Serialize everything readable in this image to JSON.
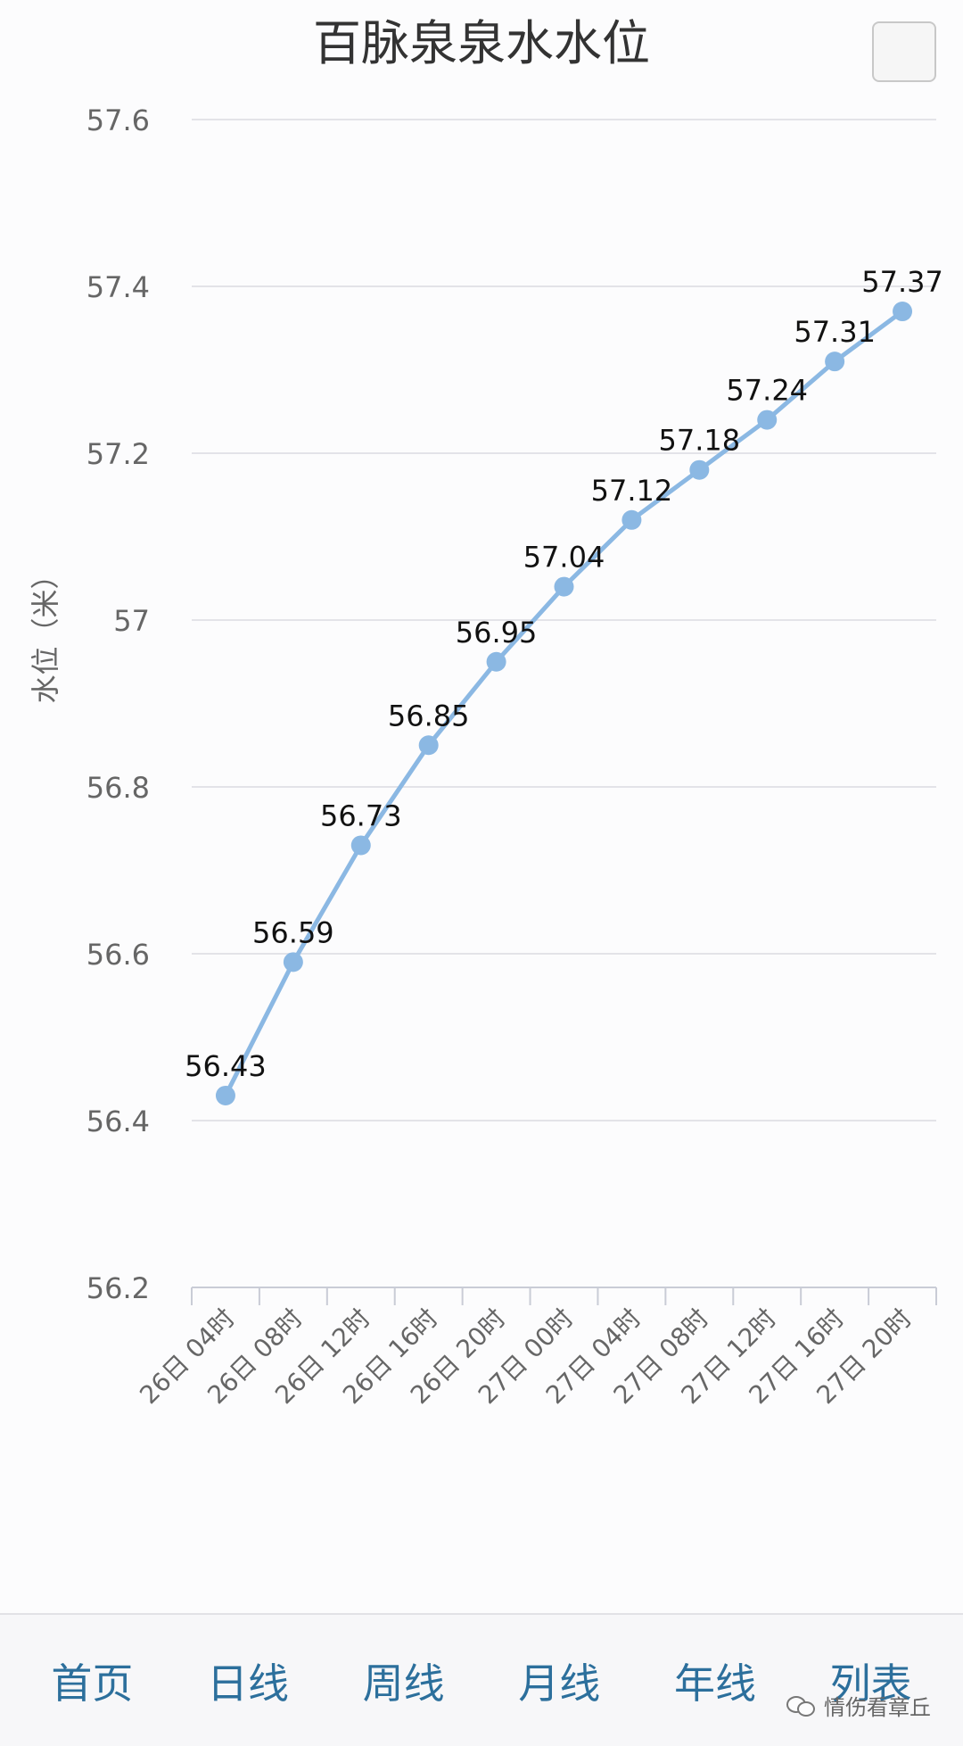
{
  "page": {
    "title": "百脉泉泉水水位"
  },
  "chart_data": {
    "type": "line",
    "title": "百脉泉泉水水位",
    "ylabel": "水位（米）",
    "xlabel": "",
    "categories": [
      "26日 04时",
      "26日 08时",
      "26日 12时",
      "26日 16时",
      "26日 20时",
      "27日 00时",
      "27日 04时",
      "27日 08时",
      "27日 12时",
      "27日 16时",
      "27日 20时"
    ],
    "values": [
      56.43,
      56.59,
      56.73,
      56.85,
      56.95,
      57.04,
      57.12,
      57.18,
      57.24,
      57.31,
      57.37
    ],
    "data_labels": [
      "56.43",
      "56.59",
      "56.73",
      "56.85",
      "56.95",
      "57.04",
      "57.12",
      "57.18",
      "57.24",
      "57.31",
      "57.37"
    ],
    "ylim": [
      56.2,
      57.6
    ],
    "yticks": [
      "57.6",
      "57.4",
      "57.2",
      "57",
      "56.8",
      "56.6",
      "56.4",
      "56.2"
    ],
    "grid": true,
    "line_color": "#8bb8e3"
  },
  "nav": {
    "items": [
      {
        "label": "首页"
      },
      {
        "label": "日线"
      },
      {
        "label": "周线"
      },
      {
        "label": "月线"
      },
      {
        "label": "年线"
      },
      {
        "label": "列表"
      }
    ]
  },
  "watermark": {
    "text": "情伤看章丘",
    "icon": "wechat-icon"
  }
}
